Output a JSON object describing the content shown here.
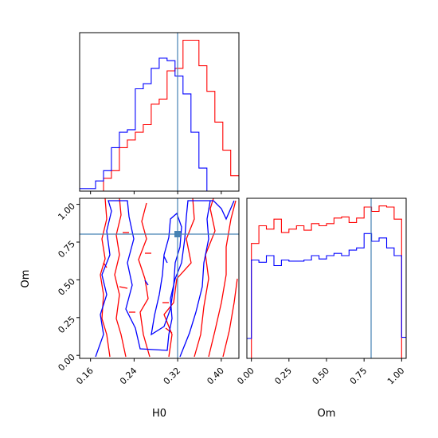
{
  "chart_data": {
    "type": "corner",
    "parameters": [
      "H0",
      "Om"
    ],
    "truth": {
      "H0": 0.3311,
      "Om": 0.8041
    },
    "colors": {
      "series_a": "#ff0000",
      "series_b": "#0000ff",
      "truth": "#4682b4"
    },
    "grid": false,
    "panels": [
      {
        "name": "H0-marginal",
        "type": "histogram",
        "xlim": [
          0.14,
          0.4324
        ],
        "x_ticks": [
          0.16,
          0.24,
          0.32,
          0.4
        ],
        "x_tick_labels_shown": false,
        "y_tick_labels_shown": false,
        "bin_edges": [
          0.14,
          0.1546,
          0.1692,
          0.1838,
          0.1984,
          0.213,
          0.2276,
          0.2422,
          0.2568,
          0.2714,
          0.286,
          0.3006,
          0.3152,
          0.3298,
          0.3444,
          0.359,
          0.3736,
          0.3882,
          0.4028,
          0.4174,
          0.4324
        ],
        "series": [
          {
            "color": "red",
            "counts": [
              0,
              0,
              0,
              5,
              8,
              17,
              20,
              23,
              26,
              34,
              36,
              47,
              48,
              59,
              59,
              49,
              39,
              27,
              16,
              6
            ]
          },
          {
            "color": "blue",
            "counts": [
              1,
              1,
              4,
              8,
              17,
              23,
              24,
              40,
              42,
              48,
              52,
              51,
              45,
              38,
              23,
              9,
              0,
              0,
              0,
              0
            ]
          }
        ]
      },
      {
        "name": "H0-Om-contour",
        "type": "contour",
        "xlabel": "H0",
        "ylabel": "Om",
        "xlim": [
          0.14,
          0.4324
        ],
        "ylim": [
          -0.02,
          1.04
        ],
        "x_ticks": [
          0.16,
          0.24,
          0.32,
          0.4
        ],
        "x_tick_labels": [
          "0.16",
          "0.24",
          "0.32",
          "0.40"
        ],
        "y_ticks": [
          0.0,
          0.25,
          0.5,
          0.75,
          1.0
        ],
        "y_tick_labels": [
          "0.00",
          "0.25",
          "0.50",
          "0.75",
          "1.00"
        ]
      },
      {
        "name": "Om-marginal",
        "type": "histogram",
        "xlabel": "Om",
        "xlim": [
          -0.03,
          1.03
        ],
        "x_ticks": [
          0.0,
          0.25,
          0.5,
          0.75,
          1.0
        ],
        "x_tick_labels": [
          "0.00",
          "0.25",
          "0.50",
          "0.75",
          "1.00"
        ],
        "y_tick_labels_shown": false,
        "bin_edges": [
          -0.03,
          0.0,
          0.05,
          0.1,
          0.15,
          0.2,
          0.25,
          0.3,
          0.35,
          0.4,
          0.45,
          0.5,
          0.55,
          0.6,
          0.65,
          0.7,
          0.75,
          0.8,
          0.85,
          0.9,
          0.95,
          1.0,
          1.03
        ],
        "series": [
          {
            "color": "red",
            "counts": [
              0,
              104,
              120,
              117,
              126,
              114,
              117,
              120,
              116,
              122,
              120,
              122,
              127,
              128,
              123,
              127,
              137,
              133,
              138,
              137,
              126,
              0
            ]
          },
          {
            "color": "blue",
            "counts": [
              18,
              89,
              87,
              93,
              84,
              89,
              88,
              88,
              89,
              93,
              90,
              93,
              95,
              93,
              98,
              100,
              113,
              106,
              109,
              100,
              93,
              19
            ]
          }
        ]
      }
    ]
  }
}
